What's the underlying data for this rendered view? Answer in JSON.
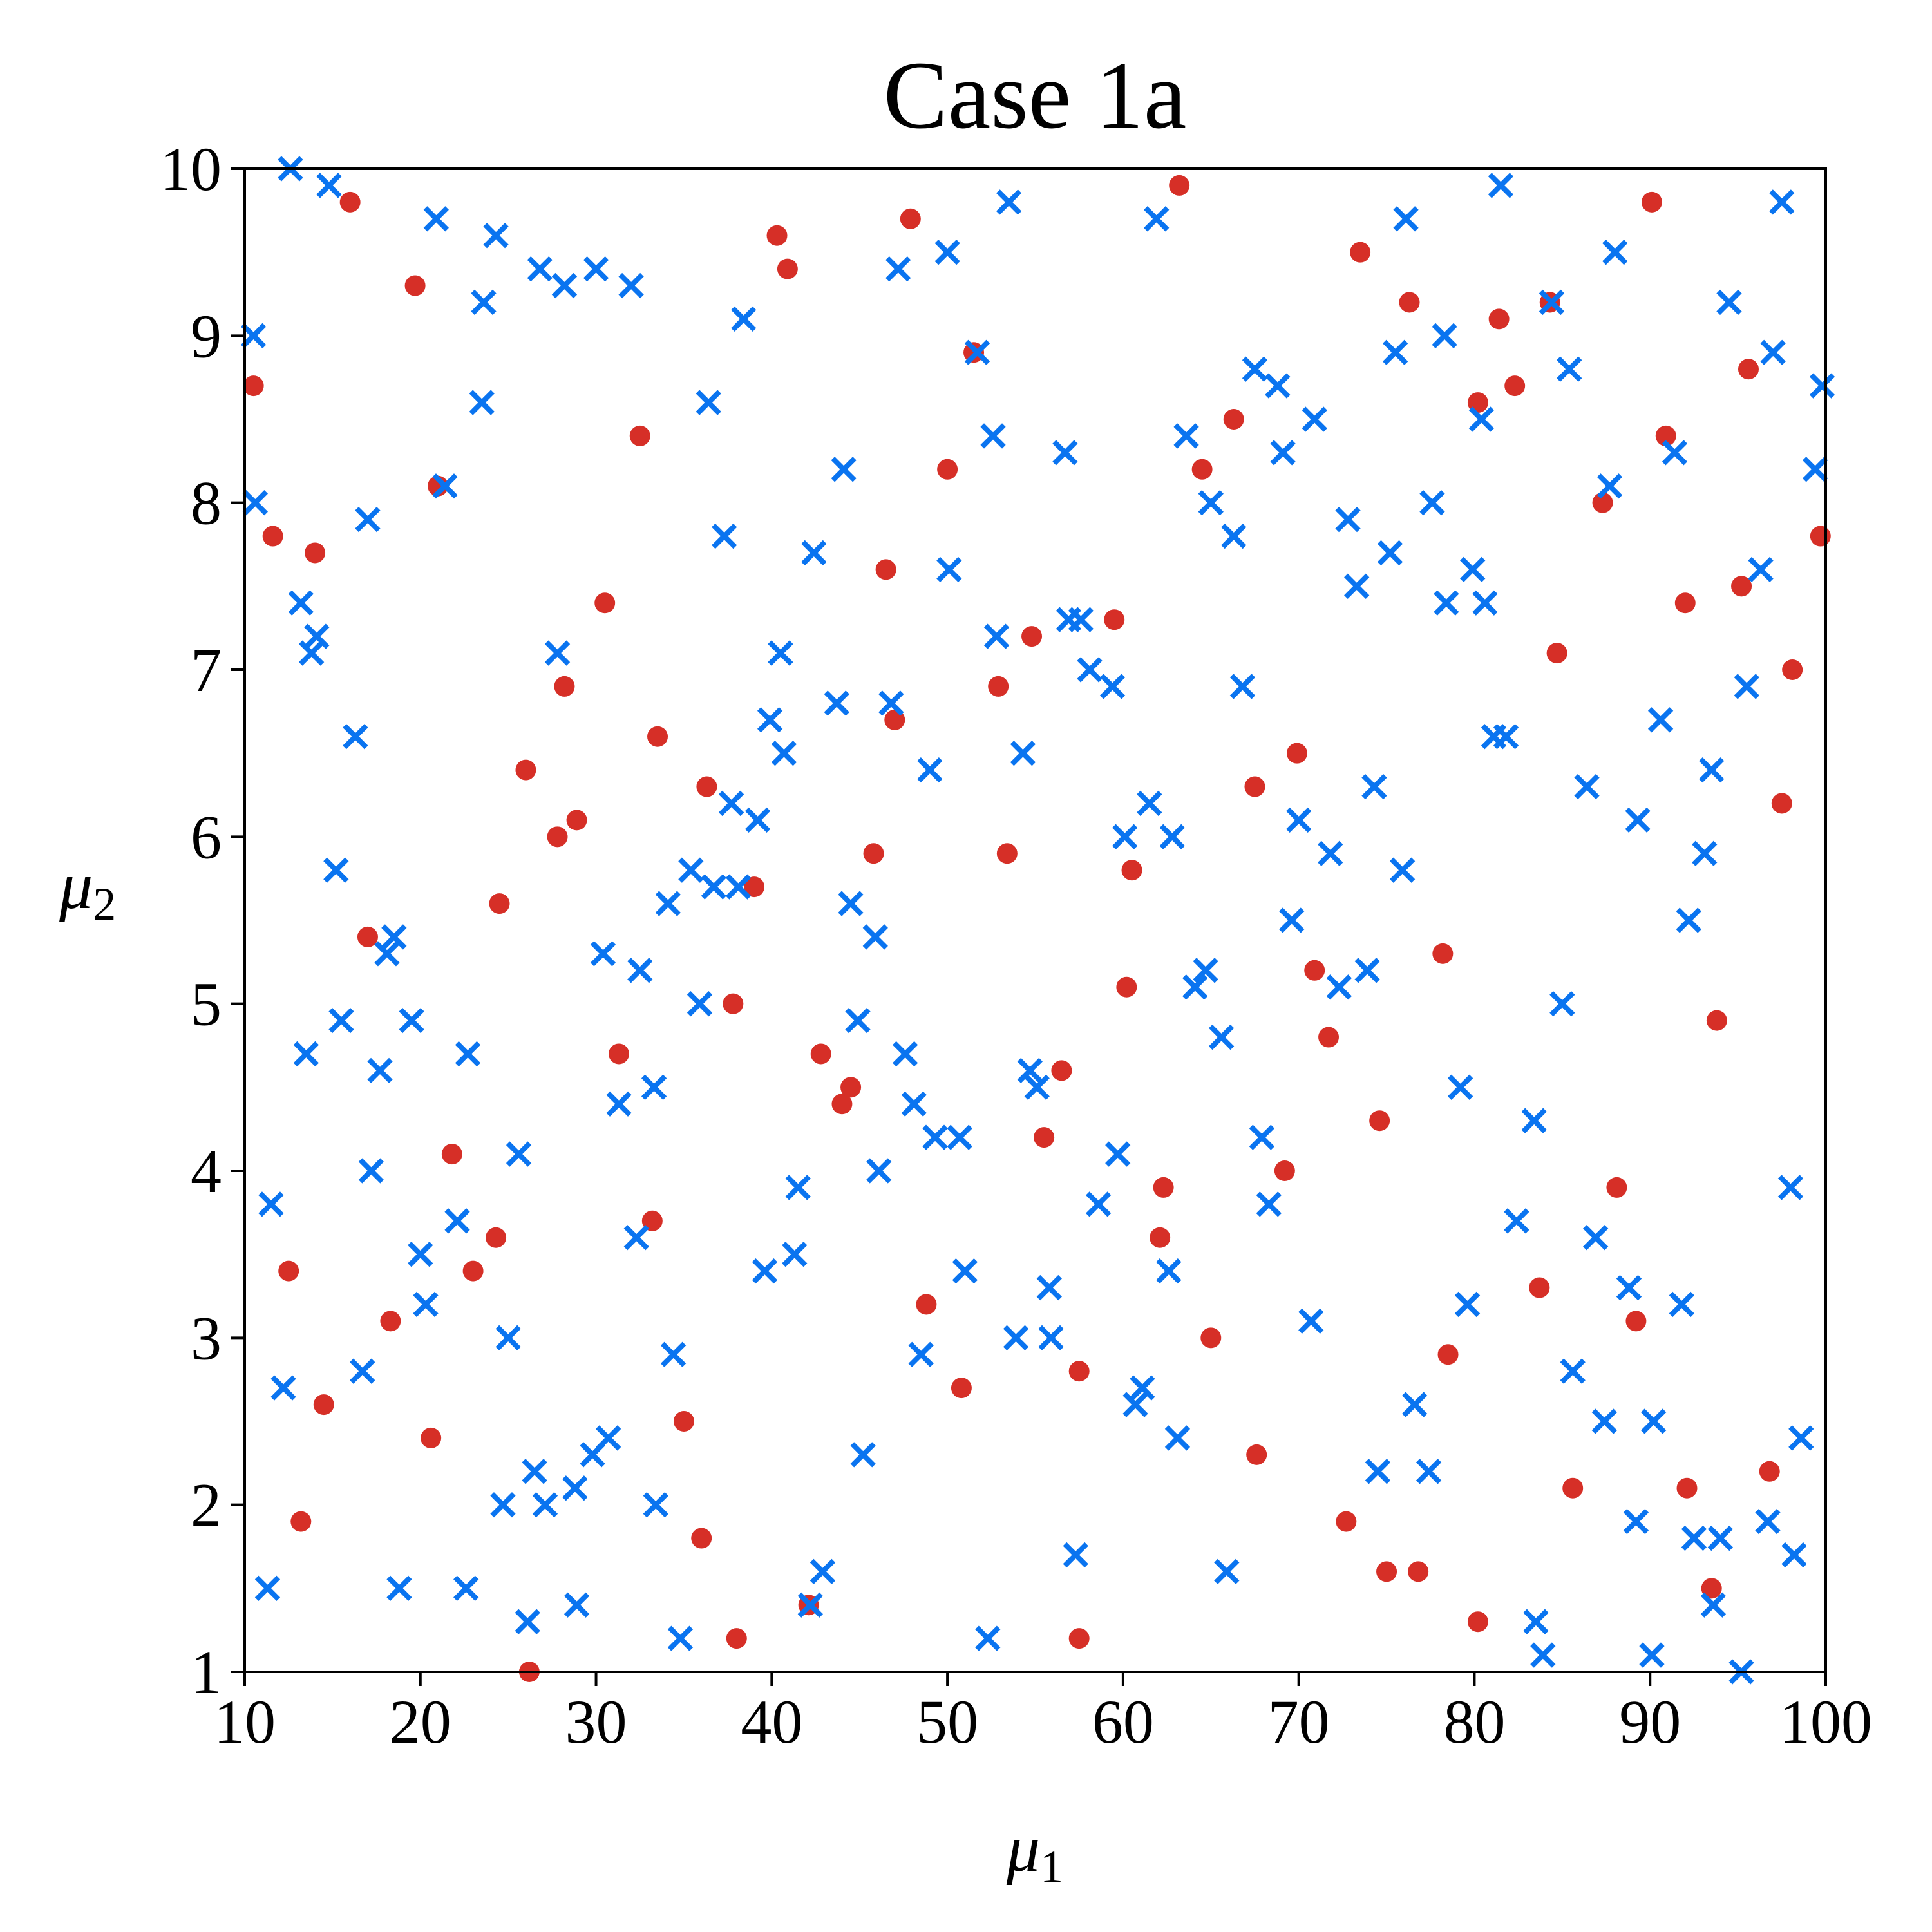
{
  "chart_data": {
    "type": "scatter",
    "title": "Case 1a",
    "xlabel": {
      "base": "μ",
      "sub": "1"
    },
    "ylabel": {
      "base": "μ",
      "sub": "2"
    },
    "xlim": [
      10,
      100
    ],
    "ylim": [
      1,
      10
    ],
    "xticks": [
      "10",
      "20",
      "30",
      "40",
      "50",
      "60",
      "70",
      "80",
      "90",
      "100"
    ],
    "yticks": [
      "1",
      "2",
      "3",
      "4",
      "5",
      "6",
      "7",
      "8",
      "9",
      "10"
    ],
    "grid": false,
    "legend": "none",
    "series": [
      {
        "marker": "dot",
        "color": "#d62f27",
        "points": [
          [
            10.5,
            8.7
          ],
          [
            11.6,
            7.8
          ],
          [
            12.5,
            3.4
          ],
          [
            13.2,
            1.9
          ],
          [
            14.0,
            7.7
          ],
          [
            14.5,
            2.6
          ],
          [
            16.0,
            9.8
          ],
          [
            17.0,
            5.4
          ],
          [
            18.3,
            3.1
          ],
          [
            19.7,
            9.3
          ],
          [
            20.6,
            2.4
          ],
          [
            21.0,
            8.1
          ],
          [
            21.8,
            4.1
          ],
          [
            23.0,
            3.4
          ],
          [
            24.3,
            3.6
          ],
          [
            24.5,
            5.6
          ],
          [
            26.0,
            6.4
          ],
          [
            26.2,
            1.0
          ],
          [
            27.8,
            6.0
          ],
          [
            28.2,
            6.9
          ],
          [
            28.9,
            6.1
          ],
          [
            30.5,
            7.4
          ],
          [
            31.3,
            4.7
          ],
          [
            32.5,
            8.4
          ],
          [
            33.2,
            3.7
          ],
          [
            33.5,
            6.6
          ],
          [
            35.0,
            2.5
          ],
          [
            36.0,
            1.8
          ],
          [
            36.3,
            6.3
          ],
          [
            37.8,
            5.0
          ],
          [
            38.0,
            1.2
          ],
          [
            39.0,
            5.7
          ],
          [
            40.3,
            9.6
          ],
          [
            40.9,
            9.4
          ],
          [
            42.1,
            1.4
          ],
          [
            42.8,
            4.7
          ],
          [
            44.0,
            4.4
          ],
          [
            44.5,
            4.5
          ],
          [
            45.8,
            5.9
          ],
          [
            46.5,
            7.6
          ],
          [
            47.0,
            6.7
          ],
          [
            47.9,
            9.7
          ],
          [
            48.8,
            3.2
          ],
          [
            50.0,
            8.2
          ],
          [
            50.8,
            2.7
          ],
          [
            51.5,
            8.9
          ],
          [
            52.9,
            6.9
          ],
          [
            53.4,
            5.9
          ],
          [
            54.8,
            7.2
          ],
          [
            55.5,
            4.2
          ],
          [
            56.5,
            4.6
          ],
          [
            57.5,
            2.8
          ],
          [
            57.5,
            1.2
          ],
          [
            59.5,
            7.3
          ],
          [
            60.2,
            5.1
          ],
          [
            60.5,
            5.8
          ],
          [
            62.1,
            3.6
          ],
          [
            62.3,
            3.9
          ],
          [
            63.2,
            9.9
          ],
          [
            64.5,
            8.2
          ],
          [
            65.0,
            3.0
          ],
          [
            66.3,
            8.5
          ],
          [
            67.5,
            6.3
          ],
          [
            67.6,
            2.3
          ],
          [
            69.2,
            4.0
          ],
          [
            69.9,
            6.5
          ],
          [
            70.9,
            5.2
          ],
          [
            71.7,
            4.8
          ],
          [
            72.7,
            1.9
          ],
          [
            73.5,
            9.5
          ],
          [
            74.6,
            4.3
          ],
          [
            75.0,
            1.6
          ],
          [
            76.3,
            9.2
          ],
          [
            76.8,
            1.6
          ],
          [
            78.2,
            5.3
          ],
          [
            78.5,
            2.9
          ],
          [
            80.2,
            8.6
          ],
          [
            80.2,
            1.3
          ],
          [
            81.4,
            9.1
          ],
          [
            82.3,
            8.7
          ],
          [
            83.7,
            3.3
          ],
          [
            84.3,
            9.2
          ],
          [
            84.7,
            7.1
          ],
          [
            85.6,
            2.1
          ],
          [
            87.3,
            8.0
          ],
          [
            88.1,
            3.9
          ],
          [
            89.2,
            3.1
          ],
          [
            90.1,
            9.8
          ],
          [
            90.9,
            8.4
          ],
          [
            92.0,
            7.4
          ],
          [
            92.1,
            2.1
          ],
          [
            93.5,
            1.5
          ],
          [
            93.8,
            4.9
          ],
          [
            95.2,
            7.5
          ],
          [
            95.6,
            8.8
          ],
          [
            96.8,
            2.2
          ],
          [
            97.5,
            6.2
          ],
          [
            98.1,
            7.0
          ],
          [
            99.7,
            7.8
          ]
        ]
      },
      {
        "marker": "x",
        "color": "#0a74f0",
        "points": [
          [
            10.5,
            9.0
          ],
          [
            10.6,
            8.0
          ],
          [
            11.3,
            1.5
          ],
          [
            11.5,
            3.8
          ],
          [
            12.2,
            2.7
          ],
          [
            12.6,
            10.0
          ],
          [
            13.2,
            7.4
          ],
          [
            13.5,
            4.7
          ],
          [
            13.8,
            7.1
          ],
          [
            14.1,
            7.2
          ],
          [
            14.8,
            9.9
          ],
          [
            15.2,
            5.8
          ],
          [
            15.5,
            4.9
          ],
          [
            16.3,
            6.6
          ],
          [
            16.7,
            2.8
          ],
          [
            17.0,
            7.9
          ],
          [
            17.2,
            4.0
          ],
          [
            17.7,
            4.6
          ],
          [
            18.1,
            5.3
          ],
          [
            18.5,
            5.4
          ],
          [
            18.8,
            1.5
          ],
          [
            19.5,
            4.9
          ],
          [
            20.0,
            3.5
          ],
          [
            20.3,
            3.2
          ],
          [
            20.9,
            9.7
          ],
          [
            21.4,
            8.1
          ],
          [
            22.1,
            3.7
          ],
          [
            22.6,
            1.5
          ],
          [
            22.7,
            4.7
          ],
          [
            23.5,
            8.6
          ],
          [
            23.6,
            9.2
          ],
          [
            24.3,
            9.6
          ],
          [
            24.7,
            2.0
          ],
          [
            25.0,
            3.0
          ],
          [
            25.6,
            4.1
          ],
          [
            26.1,
            1.3
          ],
          [
            26.5,
            2.2
          ],
          [
            26.8,
            9.4
          ],
          [
            27.1,
            2.0
          ],
          [
            27.8,
            7.1
          ],
          [
            28.2,
            9.3
          ],
          [
            28.8,
            2.1
          ],
          [
            28.9,
            1.4
          ],
          [
            29.8,
            2.3
          ],
          [
            30.0,
            9.4
          ],
          [
            30.4,
            5.3
          ],
          [
            30.7,
            2.4
          ],
          [
            31.3,
            4.4
          ],
          [
            32.0,
            9.3
          ],
          [
            32.3,
            3.6
          ],
          [
            32.5,
            5.2
          ],
          [
            33.3,
            4.5
          ],
          [
            33.4,
            2.0
          ],
          [
            34.1,
            5.6
          ],
          [
            34.4,
            2.9
          ],
          [
            34.8,
            1.2
          ],
          [
            35.4,
            5.8
          ],
          [
            35.9,
            5.0
          ],
          [
            36.4,
            8.6
          ],
          [
            36.7,
            5.7
          ],
          [
            37.3,
            7.8
          ],
          [
            37.7,
            6.2
          ],
          [
            38.1,
            5.7
          ],
          [
            38.4,
            9.1
          ],
          [
            39.2,
            6.1
          ],
          [
            39.6,
            3.4
          ],
          [
            39.9,
            6.7
          ],
          [
            40.5,
            7.1
          ],
          [
            40.7,
            6.5
          ],
          [
            41.3,
            3.5
          ],
          [
            41.5,
            3.9
          ],
          [
            42.2,
            1.4
          ],
          [
            42.4,
            7.7
          ],
          [
            42.9,
            1.6
          ],
          [
            43.7,
            6.8
          ],
          [
            44.1,
            8.2
          ],
          [
            44.5,
            5.6
          ],
          [
            44.9,
            4.9
          ],
          [
            45.2,
            2.3
          ],
          [
            45.9,
            5.4
          ],
          [
            46.1,
            4.0
          ],
          [
            46.8,
            6.8
          ],
          [
            47.2,
            9.4
          ],
          [
            47.6,
            4.7
          ],
          [
            48.1,
            4.4
          ],
          [
            48.5,
            2.9
          ],
          [
            49.0,
            6.4
          ],
          [
            49.3,
            4.2
          ],
          [
            50.0,
            9.5
          ],
          [
            50.1,
            7.6
          ],
          [
            50.7,
            4.2
          ],
          [
            51.0,
            3.4
          ],
          [
            51.7,
            8.9
          ],
          [
            52.3,
            1.2
          ],
          [
            52.6,
            8.4
          ],
          [
            52.8,
            7.2
          ],
          [
            53.5,
            9.8
          ],
          [
            53.9,
            3.0
          ],
          [
            54.3,
            6.5
          ],
          [
            54.7,
            4.6
          ],
          [
            55.1,
            4.5
          ],
          [
            55.8,
            3.3
          ],
          [
            55.9,
            3.0
          ],
          [
            56.7,
            8.3
          ],
          [
            56.9,
            7.3
          ],
          [
            57.3,
            1.7
          ],
          [
            57.6,
            7.3
          ],
          [
            58.1,
            7.0
          ],
          [
            58.6,
            3.8
          ],
          [
            59.4,
            6.9
          ],
          [
            59.7,
            4.1
          ],
          [
            60.1,
            6.0
          ],
          [
            60.7,
            2.6
          ],
          [
            61.1,
            2.7
          ],
          [
            61.5,
            6.2
          ],
          [
            61.9,
            9.7
          ],
          [
            62.6,
            3.4
          ],
          [
            62.8,
            6.0
          ],
          [
            63.1,
            2.4
          ],
          [
            63.6,
            8.4
          ],
          [
            64.1,
            5.1
          ],
          [
            64.7,
            5.2
          ],
          [
            65.0,
            8.0
          ],
          [
            65.6,
            4.8
          ],
          [
            65.9,
            1.6
          ],
          [
            66.3,
            7.8
          ],
          [
            66.8,
            6.9
          ],
          [
            67.5,
            8.8
          ],
          [
            67.9,
            4.2
          ],
          [
            68.3,
            3.8
          ],
          [
            68.8,
            8.7
          ],
          [
            69.1,
            8.3
          ],
          [
            69.6,
            5.5
          ],
          [
            70.0,
            6.1
          ],
          [
            70.7,
            3.1
          ],
          [
            70.9,
            8.5
          ],
          [
            71.8,
            5.9
          ],
          [
            72.3,
            5.1
          ],
          [
            72.8,
            7.9
          ],
          [
            73.3,
            7.5
          ],
          [
            73.9,
            5.2
          ],
          [
            74.3,
            6.3
          ],
          [
            74.5,
            2.2
          ],
          [
            75.2,
            7.7
          ],
          [
            75.5,
            8.9
          ],
          [
            75.9,
            5.8
          ],
          [
            76.1,
            9.7
          ],
          [
            76.6,
            2.6
          ],
          [
            77.4,
            2.2
          ],
          [
            77.6,
            8.0
          ],
          [
            78.3,
            9.0
          ],
          [
            78.4,
            7.4
          ],
          [
            79.2,
            4.5
          ],
          [
            79.6,
            3.2
          ],
          [
            79.9,
            7.6
          ],
          [
            80.4,
            8.5
          ],
          [
            80.6,
            7.4
          ],
          [
            81.1,
            6.6
          ],
          [
            81.5,
            9.9
          ],
          [
            81.8,
            6.6
          ],
          [
            82.4,
            3.7
          ],
          [
            83.4,
            4.3
          ],
          [
            83.5,
            1.3
          ],
          [
            83.9,
            1.1
          ],
          [
            84.4,
            9.2
          ],
          [
            85.0,
            5.0
          ],
          [
            85.4,
            8.8
          ],
          [
            85.6,
            2.8
          ],
          [
            86.4,
            6.3
          ],
          [
            86.9,
            3.6
          ],
          [
            87.4,
            2.5
          ],
          [
            87.7,
            8.1
          ],
          [
            88.0,
            9.5
          ],
          [
            88.8,
            3.3
          ],
          [
            89.2,
            1.9
          ],
          [
            89.3,
            6.1
          ],
          [
            90.1,
            1.1
          ],
          [
            90.2,
            2.5
          ],
          [
            90.6,
            6.7
          ],
          [
            91.4,
            8.3
          ],
          [
            91.8,
            3.2
          ],
          [
            92.2,
            5.5
          ],
          [
            92.5,
            1.8
          ],
          [
            93.1,
            5.9
          ],
          [
            93.5,
            6.4
          ],
          [
            93.6,
            1.4
          ],
          [
            94.0,
            1.8
          ],
          [
            94.5,
            9.2
          ],
          [
            95.2,
            1.0
          ],
          [
            95.5,
            6.9
          ],
          [
            96.3,
            7.6
          ],
          [
            96.7,
            1.9
          ],
          [
            97.0,
            8.9
          ],
          [
            97.5,
            9.8
          ],
          [
            98.0,
            3.9
          ],
          [
            98.2,
            1.7
          ],
          [
            98.6,
            2.4
          ],
          [
            99.4,
            8.2
          ],
          [
            99.8,
            8.7
          ]
        ]
      }
    ]
  }
}
